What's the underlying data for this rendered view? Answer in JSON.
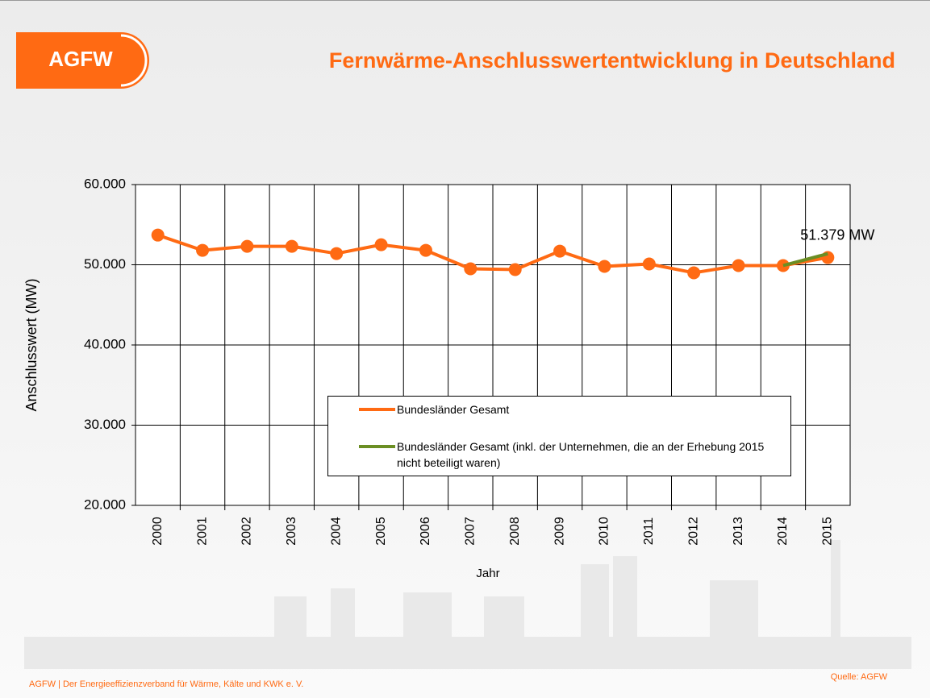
{
  "slide": {
    "logo": "AGFW",
    "footer": "AGFW | Der Energieeffizienzverband für Wärme, Kälte und KWK e. V.",
    "source": "Quelle: AGFW"
  },
  "chart_data": {
    "type": "line",
    "title": "Fernwärme-Anschlusswertentwicklung in Deutschland",
    "y_label": "Anschlusswert (MW)",
    "x_label": "Jahr",
    "categories": [
      "2000",
      "2001",
      "2002",
      "2003",
      "2004",
      "2005",
      "2006",
      "2007",
      "2008",
      "2009",
      "2010",
      "2011",
      "2012",
      "2013",
      "2014",
      "2015"
    ],
    "series": [
      {
        "name": "Bundesländer Gesamt",
        "color": "#ff6a13",
        "marker": true,
        "values": [
          53700,
          51800,
          52300,
          52300,
          51400,
          52500,
          51800,
          49500,
          49400,
          51700,
          49800,
          50100,
          49000,
          49900,
          49900,
          50900
        ]
      },
      {
        "name": "Bundesländer Gesamt (inkl. der Unternehmen, die an der Erhebung 2015 nicht beteiligt waren)",
        "color": "#6b8e23",
        "marker": false,
        "values": [
          null,
          null,
          null,
          null,
          null,
          null,
          null,
          null,
          null,
          null,
          null,
          null,
          null,
          null,
          49900,
          51379
        ],
        "value_labels": [
          null,
          null,
          null,
          null,
          null,
          null,
          null,
          null,
          null,
          null,
          null,
          null,
          null,
          null,
          null,
          "51.379 MW"
        ]
      }
    ],
    "ylim": [
      20000,
      60000
    ],
    "yticks": [
      {
        "value": 20000,
        "label": "20.000"
      },
      {
        "value": 30000,
        "label": "30.000"
      },
      {
        "value": 40000,
        "label": "40.000"
      },
      {
        "value": 50000,
        "label": "50.000"
      },
      {
        "value": 60000,
        "label": "60.000"
      }
    ],
    "grid": true
  }
}
